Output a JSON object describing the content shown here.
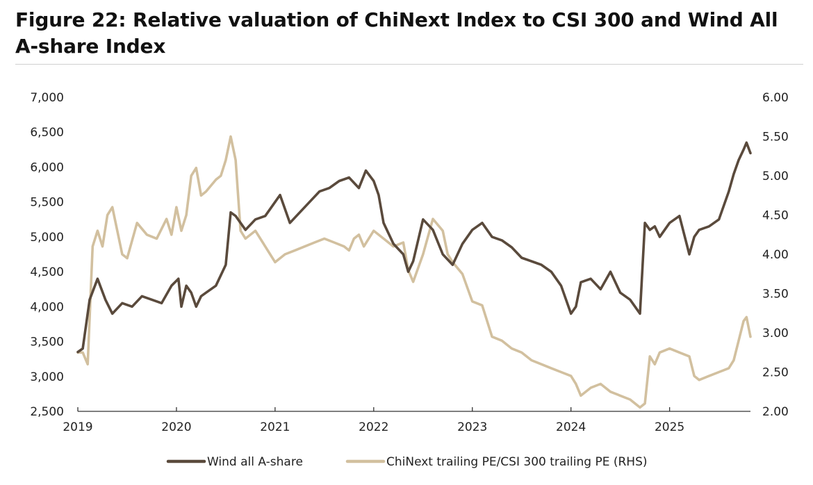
{
  "title": "Figure 22: Relative valuation of ChiNext Index to CSI 300 and Wind All A-share Index",
  "chart_data": {
    "type": "line",
    "title": "Figure 22: Relative valuation of ChiNext Index to CSI 300 and Wind All A-share Index",
    "x_tick_labels": [
      "2019",
      "2020",
      "2021",
      "2022",
      "2023",
      "2024",
      "2025"
    ],
    "x_range": [
      2019.0,
      2025.82
    ],
    "y_left": {
      "range": [
        2500,
        7000
      ],
      "tick_values": [
        2500,
        3000,
        3500,
        4000,
        4500,
        5000,
        5500,
        6000,
        6500,
        7000
      ],
      "tick_labels": [
        "2,500",
        "3,000",
        "3,500",
        "4,000",
        "4,500",
        "5,000",
        "5,500",
        "6,000",
        "6,500",
        "7,000"
      ]
    },
    "y_right": {
      "range": [
        2.0,
        6.0
      ],
      "tick_values": [
        2.0,
        2.5,
        3.0,
        3.5,
        4.0,
        4.5,
        5.0,
        5.5,
        6.0
      ],
      "tick_labels": [
        "2.00",
        "2.50",
        "3.00",
        "3.50",
        "4.00",
        "4.50",
        "5.00",
        "5.50",
        "6.00"
      ]
    },
    "legend_position": "bottom-center",
    "grid": false,
    "series": [
      {
        "name": "Wind all A-share",
        "axis": "left",
        "color": "#5a4a3c",
        "x": [
          2019.0,
          2019.05,
          2019.12,
          2019.2,
          2019.28,
          2019.35,
          2019.45,
          2019.55,
          2019.65,
          2019.75,
          2019.85,
          2019.95,
          2020.02,
          2020.05,
          2020.1,
          2020.15,
          2020.2,
          2020.25,
          2020.3,
          2020.4,
          2020.5,
          2020.55,
          2020.6,
          2020.7,
          2020.8,
          2020.9,
          2021.0,
          2021.05,
          2021.15,
          2021.25,
          2021.35,
          2021.45,
          2021.55,
          2021.65,
          2021.75,
          2021.85,
          2021.92,
          2022.0,
          2022.05,
          2022.1,
          2022.2,
          2022.3,
          2022.35,
          2022.4,
          2022.5,
          2022.6,
          2022.7,
          2022.8,
          2022.9,
          2023.0,
          2023.1,
          2023.2,
          2023.3,
          2023.4,
          2023.5,
          2023.6,
          2023.7,
          2023.8,
          2023.9,
          2024.0,
          2024.05,
          2024.1,
          2024.2,
          2024.3,
          2024.4,
          2024.5,
          2024.6,
          2024.65,
          2024.7,
          2024.75,
          2024.8,
          2024.85,
          2024.9,
          2025.0,
          2025.1,
          2025.2,
          2025.25,
          2025.3,
          2025.4,
          2025.5,
          2025.55,
          2025.6,
          2025.65,
          2025.7,
          2025.75,
          2025.78,
          2025.82
        ],
        "values": [
          3350,
          3400,
          4100,
          4400,
          4100,
          3900,
          4050,
          4000,
          4150,
          4100,
          4050,
          4300,
          4400,
          4000,
          4300,
          4200,
          4000,
          4150,
          4200,
          4300,
          4600,
          5350,
          5300,
          5100,
          5250,
          5300,
          5500,
          5600,
          5200,
          5350,
          5500,
          5650,
          5700,
          5800,
          5850,
          5700,
          5950,
          5800,
          5600,
          5200,
          4900,
          4750,
          4500,
          4650,
          5250,
          5100,
          4750,
          4600,
          4900,
          5100,
          5200,
          5000,
          4950,
          4850,
          4700,
          4650,
          4600,
          4500,
          4300,
          3900,
          4000,
          4350,
          4400,
          4250,
          4500,
          4200,
          4100,
          4000,
          3900,
          5200,
          5100,
          5150,
          5000,
          5200,
          5300,
          4750,
          5000,
          5100,
          5150,
          5250,
          5450,
          5650,
          5900,
          6100,
          6250,
          6350,
          6200
        ]
      },
      {
        "name": "ChiNext trailing PE/CSI 300 trailing PE (RHS)",
        "axis": "right",
        "color": "#d2c09f",
        "x": [
          2019.0,
          2019.05,
          2019.1,
          2019.15,
          2019.2,
          2019.25,
          2019.3,
          2019.35,
          2019.4,
          2019.45,
          2019.5,
          2019.6,
          2019.7,
          2019.8,
          2019.9,
          2019.95,
          2020.0,
          2020.05,
          2020.1,
          2020.15,
          2020.2,
          2020.25,
          2020.3,
          2020.4,
          2020.45,
          2020.5,
          2020.55,
          2020.6,
          2020.65,
          2020.7,
          2020.8,
          2020.9,
          2021.0,
          2021.1,
          2021.2,
          2021.3,
          2021.4,
          2021.5,
          2021.6,
          2021.7,
          2021.75,
          2021.8,
          2021.85,
          2021.9,
          2022.0,
          2022.1,
          2022.2,
          2022.3,
          2022.35,
          2022.4,
          2022.5,
          2022.6,
          2022.7,
          2022.75,
          2022.8,
          2022.9,
          2023.0,
          2023.1,
          2023.2,
          2023.3,
          2023.4,
          2023.5,
          2023.6,
          2023.7,
          2023.8,
          2023.9,
          2024.0,
          2024.05,
          2024.1,
          2024.2,
          2024.3,
          2024.4,
          2024.5,
          2024.6,
          2024.65,
          2024.7,
          2024.75,
          2024.8,
          2024.85,
          2024.9,
          2025.0,
          2025.1,
          2025.2,
          2025.25,
          2025.3,
          2025.4,
          2025.5,
          2025.6,
          2025.65,
          2025.7,
          2025.75,
          2025.78,
          2025.82
        ],
        "values": [
          2.75,
          2.75,
          2.6,
          4.1,
          4.3,
          4.1,
          4.5,
          4.6,
          4.3,
          4.0,
          3.95,
          4.4,
          4.25,
          4.2,
          4.45,
          4.25,
          4.6,
          4.3,
          4.5,
          5.0,
          5.1,
          4.75,
          4.8,
          4.95,
          5.0,
          5.2,
          5.5,
          5.2,
          4.3,
          4.2,
          4.3,
          4.1,
          3.9,
          4.0,
          4.05,
          4.1,
          4.15,
          4.2,
          4.15,
          4.1,
          4.05,
          4.2,
          4.25,
          4.1,
          4.3,
          4.2,
          4.1,
          4.15,
          3.8,
          3.65,
          4.0,
          4.45,
          4.3,
          4.0,
          3.9,
          3.75,
          3.4,
          3.35,
          2.95,
          2.9,
          2.8,
          2.75,
          2.65,
          2.6,
          2.55,
          2.5,
          2.45,
          2.35,
          2.2,
          2.3,
          2.35,
          2.25,
          2.2,
          2.15,
          2.1,
          2.05,
          2.1,
          2.7,
          2.6,
          2.75,
          2.8,
          2.75,
          2.7,
          2.45,
          2.4,
          2.45,
          2.5,
          2.55,
          2.65,
          2.9,
          3.15,
          3.2,
          2.95
        ]
      }
    ]
  }
}
